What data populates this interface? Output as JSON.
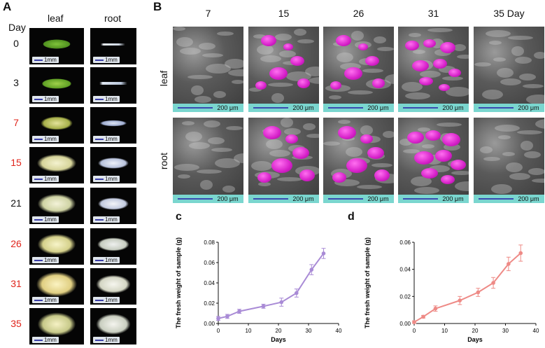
{
  "panelA": {
    "letter": "A",
    "day_header": "Day",
    "col_leaf": "leaf",
    "col_root": "root",
    "scale_label": "1mm",
    "rows": [
      {
        "day": "0",
        "color": "#111111"
      },
      {
        "day": "3",
        "color": "#111111"
      },
      {
        "day": "7",
        "color": "#e0241b"
      },
      {
        "day": "15",
        "color": "#e0241b"
      },
      {
        "day": "21",
        "color": "#111111"
      },
      {
        "day": "26",
        "color": "#e0241b"
      },
      {
        "day": "31",
        "color": "#e0241b"
      },
      {
        "day": "35",
        "color": "#e0241b"
      }
    ]
  },
  "panelB": {
    "letter": "B",
    "days": [
      "7",
      "15",
      "26",
      "31",
      "35 Day"
    ],
    "row_labels": [
      "leaf",
      "root"
    ],
    "scale_label": "200 μm",
    "magenta_level": [
      0,
      2,
      2,
      3,
      0
    ]
  },
  "chart_data": [
    {
      "type": "line",
      "panel": "c",
      "xlabel": "Days",
      "ylabel": "The fresh weight of sample (g)",
      "xlim": [
        0,
        40
      ],
      "ylim": [
        0,
        0.08
      ],
      "xticks": [
        "0",
        "10",
        "20",
        "30",
        "40"
      ],
      "yticks": [
        "0.00",
        "0.02",
        "0.04",
        "0.06",
        "0.08"
      ],
      "color": "#a98bd6",
      "x": [
        0,
        3,
        7,
        15,
        21,
        26,
        31,
        35
      ],
      "y": [
        0.005,
        0.007,
        0.012,
        0.017,
        0.021,
        0.03,
        0.053,
        0.069
      ],
      "err": [
        0.002,
        0.002,
        0.002,
        0.002,
        0.004,
        0.004,
        0.005,
        0.005
      ]
    },
    {
      "type": "line",
      "panel": "d",
      "xlabel": "Days",
      "ylabel": "The fresh weight of sample (g)",
      "xlim": [
        0,
        40
      ],
      "ylim": [
        0,
        0.06
      ],
      "xticks": [
        "0",
        "10",
        "20",
        "30",
        "40"
      ],
      "yticks": [
        "0.00",
        "0.02",
        "0.04",
        "0.06"
      ],
      "color": "#ee8a86",
      "x": [
        0,
        3,
        7,
        15,
        21,
        26,
        31,
        35
      ],
      "y": [
        0.001,
        0.005,
        0.011,
        0.017,
        0.023,
        0.03,
        0.044,
        0.052
      ],
      "err": [
        0.001,
        0.001,
        0.002,
        0.003,
        0.003,
        0.004,
        0.005,
        0.006
      ]
    }
  ]
}
